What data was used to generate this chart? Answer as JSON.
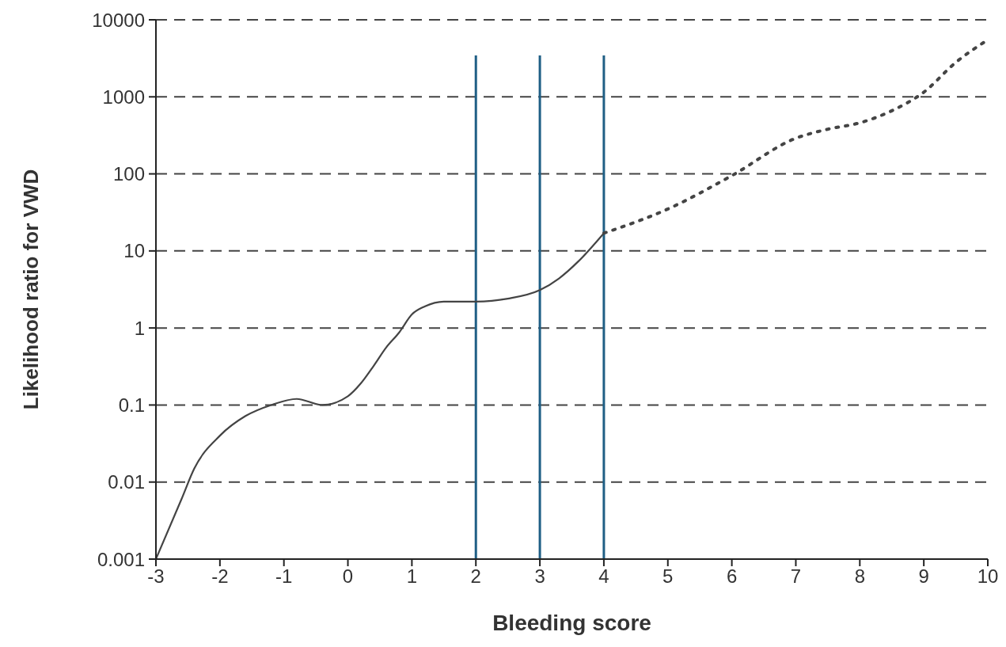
{
  "chart_data": {
    "type": "line",
    "xlabel": "Bleeding score",
    "ylabel": "Likelihood ratio for VWD",
    "log": "y",
    "xlim": [
      -3,
      10
    ],
    "xticks": [
      -3,
      -2,
      -1,
      0,
      1,
      2,
      3,
      4,
      5,
      6,
      7,
      8,
      9,
      10
    ],
    "ylim": [
      0.001,
      10000
    ],
    "yticks": [
      0.001,
      0.01,
      0.1,
      1,
      10,
      100,
      1000,
      10000
    ],
    "grid": "y",
    "marker": "none",
    "series": [
      {
        "color": "#444444",
        "line_style": "solid",
        "x": [
          -3,
          -2.6,
          -2.4,
          -2,
          -1.6,
          -1.2,
          -0.8,
          -0.4,
          0,
          0.2,
          0.4,
          0.6,
          0.8,
          1,
          1.2,
          1.5,
          2,
          2.5,
          3,
          3.3,
          3.6,
          4
        ],
        "values": [
          0.001,
          0.006,
          0.015,
          0.04,
          0.072,
          0.1,
          0.12,
          0.1,
          0.13,
          0.19,
          0.32,
          0.56,
          0.87,
          1.5,
          1.9,
          2.2,
          2.2,
          2.4,
          3.1,
          4.4,
          7.3,
          17
        ]
      },
      {
        "color": "#444444",
        "line_style": "dotted",
        "x": [
          4,
          5,
          6,
          7,
          7.5,
          8,
          8.5,
          9,
          9.5,
          10
        ],
        "values": [
          17,
          35,
          95,
          290,
          380,
          460,
          660,
          1150,
          2800,
          5500
        ]
      }
    ],
    "ref_lines": [
      {
        "axis": "x",
        "value": 2,
        "color": "#1f5f85"
      },
      {
        "axis": "x",
        "value": 3,
        "color": "#1f5f85"
      },
      {
        "axis": "x",
        "value": 4,
        "color": "#1f5f85"
      }
    ]
  }
}
